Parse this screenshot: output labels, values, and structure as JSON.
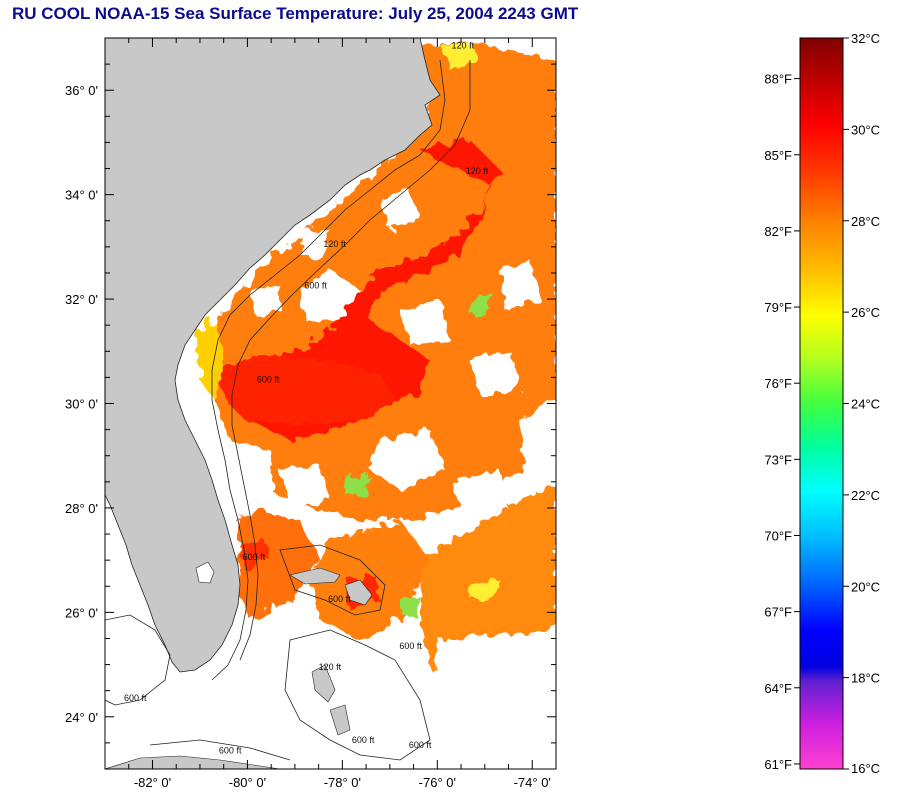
{
  "title": "RU COOL  NOAA-15  Sea Surface Temperature:  July 25, 2004 2243 GMT",
  "map": {
    "lon_range": [
      -83.0,
      -73.5
    ],
    "lat_range": [
      23.0,
      37.0
    ],
    "lat_labels": [
      {
        "value": 36,
        "text": "36° 0'"
      },
      {
        "value": 34,
        "text": "34° 0'"
      },
      {
        "value": 32,
        "text": "32° 0'"
      },
      {
        "value": 30,
        "text": "30° 0'"
      },
      {
        "value": 28,
        "text": "28° 0'"
      },
      {
        "value": 26,
        "text": "26° 0'"
      },
      {
        "value": 24,
        "text": "24° 0'"
      }
    ],
    "lon_labels": [
      {
        "value": -82,
        "text": "-82° 0'"
      },
      {
        "value": -80,
        "text": "-80° 0'"
      },
      {
        "value": -78,
        "text": "-78° 0'"
      },
      {
        "value": -76,
        "text": "-76° 0'"
      },
      {
        "value": -74,
        "text": "-74° 0'"
      }
    ],
    "contour_labels": [
      {
        "text": "120 ft",
        "lon": -75.7,
        "lat": 36.8
      },
      {
        "text": "120 ft",
        "lon": -75.4,
        "lat": 34.4
      },
      {
        "text": "120 ft",
        "lon": -78.4,
        "lat": 33.0
      },
      {
        "text": "600 ft",
        "lon": -78.8,
        "lat": 32.2
      },
      {
        "text": "600 ft",
        "lon": -79.8,
        "lat": 30.4
      },
      {
        "text": "600 ft",
        "lon": -80.1,
        "lat": 27.0
      },
      {
        "text": "600 ft",
        "lon": -78.3,
        "lat": 26.2
      },
      {
        "text": "600 ft",
        "lon": -76.8,
        "lat": 25.3
      },
      {
        "text": "120 ft",
        "lon": -78.5,
        "lat": 24.9
      },
      {
        "text": "600 ft",
        "lon": -82.6,
        "lat": 24.3
      },
      {
        "text": "600 ft",
        "lon": -77.8,
        "lat": 23.5
      },
      {
        "text": "600 ft",
        "lon": -76.6,
        "lat": 23.4
      },
      {
        "text": "600 ft",
        "lon": -80.6,
        "lat": 23.3
      }
    ],
    "colors": {
      "land": "#c8c8c8",
      "no_data": "#ffffff",
      "frame": "#000000"
    }
  },
  "colorbar": {
    "celsius": [
      {
        "value": 32,
        "text": "32°C"
      },
      {
        "value": 30,
        "text": "30°C"
      },
      {
        "value": 28,
        "text": "28°C"
      },
      {
        "value": 26,
        "text": "26°C"
      },
      {
        "value": 24,
        "text": "24°C"
      },
      {
        "value": 22,
        "text": "22°C"
      },
      {
        "value": 20,
        "text": "20°C"
      },
      {
        "value": 18,
        "text": "18°C"
      },
      {
        "value": 16,
        "text": "16°C"
      }
    ],
    "fahrenheit": [
      {
        "value": 88,
        "text": "88°F"
      },
      {
        "value": 85,
        "text": "85°F"
      },
      {
        "value": 82,
        "text": "82°F"
      },
      {
        "value": 79,
        "text": "79°F"
      },
      {
        "value": 76,
        "text": "76°F"
      },
      {
        "value": 73,
        "text": "73°F"
      },
      {
        "value": 70,
        "text": "70°F"
      },
      {
        "value": 67,
        "text": "67°F"
      },
      {
        "value": 64,
        "text": "64°F"
      },
      {
        "value": 61,
        "text": "61°F"
      }
    ],
    "range_c": [
      16,
      32
    ],
    "gradient": [
      {
        "t": 0.0,
        "color": "#800000"
      },
      {
        "t": 0.06,
        "color": "#c00000"
      },
      {
        "t": 0.12,
        "color": "#ff0000"
      },
      {
        "t": 0.19,
        "color": "#ff4000"
      },
      {
        "t": 0.25,
        "color": "#ff8000"
      },
      {
        "t": 0.32,
        "color": "#ffc000"
      },
      {
        "t": 0.38,
        "color": "#ffff00"
      },
      {
        "t": 0.44,
        "color": "#b0ff20"
      },
      {
        "t": 0.5,
        "color": "#40ff40"
      },
      {
        "t": 0.56,
        "color": "#00ffa0"
      },
      {
        "t": 0.62,
        "color": "#00ffff"
      },
      {
        "t": 0.68,
        "color": "#00c0ff"
      },
      {
        "t": 0.75,
        "color": "#0060ff"
      },
      {
        "t": 0.81,
        "color": "#0000ff"
      },
      {
        "t": 0.86,
        "color": "#0000e0"
      },
      {
        "t": 0.88,
        "color": "#6020d0"
      },
      {
        "t": 0.94,
        "color": "#d020e0"
      },
      {
        "t": 1.0,
        "color": "#ff40d0"
      }
    ]
  }
}
